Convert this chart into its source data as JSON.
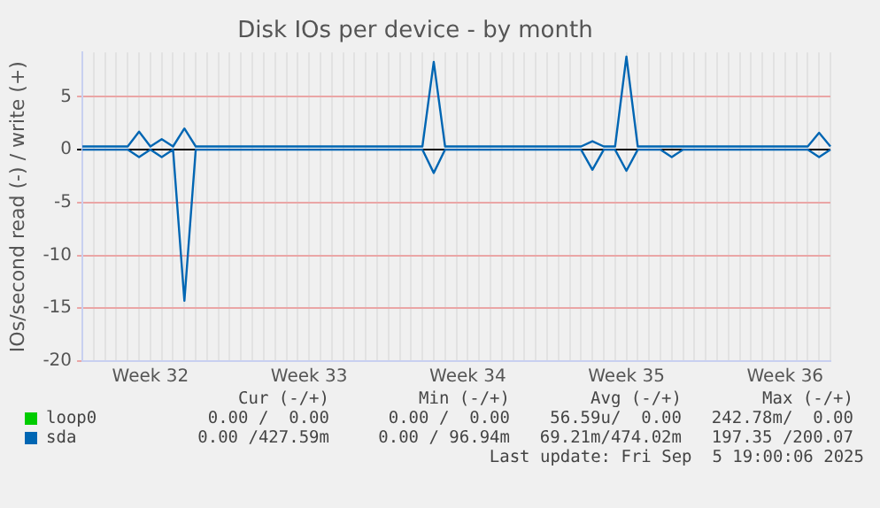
{
  "chart_data": {
    "type": "line",
    "title": "Disk IOs per device - by month",
    "ylabel": "IOs/second read (-) / write (+)",
    "categories": [
      null,
      null,
      null,
      null,
      null,
      null,
      "Week 32",
      null,
      null,
      null,
      null,
      null,
      null,
      null,
      null,
      null,
      null,
      null,
      null,
      null,
      "Week 33",
      null,
      null,
      null,
      null,
      null,
      null,
      null,
      null,
      null,
      null,
      null,
      null,
      null,
      "Week 34",
      null,
      null,
      null,
      null,
      null,
      null,
      null,
      null,
      null,
      null,
      null,
      null,
      null,
      "Week 35",
      null,
      null,
      null,
      null,
      null,
      null,
      null,
      null,
      null,
      null,
      null,
      null,
      null,
      "Week 36",
      null,
      null,
      null,
      null
    ],
    "ylim": [
      -20,
      9.2
    ],
    "yticks": [
      -20,
      -15,
      -10,
      -5,
      0,
      5
    ],
    "grid": true,
    "legend": "bottom",
    "marker": "none",
    "line_style": "solid",
    "series": [
      {
        "name": "loop0",
        "color": "#00cc00",
        "values": [
          null,
          null,
          null,
          null,
          null,
          null,
          null,
          null,
          null,
          null,
          null,
          null,
          null,
          null,
          null,
          null,
          null,
          null,
          null,
          null,
          null,
          null,
          null,
          null,
          null,
          null,
          null,
          null,
          null,
          null,
          null,
          null,
          null,
          null,
          null,
          null,
          null,
          null,
          null,
          null,
          null,
          null,
          null,
          null,
          null,
          null,
          null,
          null,
          null,
          null,
          null,
          null,
          null,
          null,
          null,
          null,
          null,
          null,
          null,
          null,
          null,
          null,
          null,
          null,
          null,
          null,
          null
        ]
      },
      {
        "name": "sda",
        "color": "#0066b3",
        "values": [
          0.3,
          0.3,
          0.3,
          0.3,
          0.3,
          1.7,
          0.3,
          1.0,
          0.3,
          2.0,
          0.3,
          0.3,
          0.3,
          0.3,
          0.3,
          0.3,
          0.3,
          0.3,
          0.3,
          0.3,
          0.3,
          0.3,
          0.3,
          0.3,
          0.3,
          0.3,
          0.3,
          0.3,
          0.3,
          0.3,
          0.3,
          8.3,
          0.3,
          0.3,
          0.3,
          0.3,
          0.3,
          0.3,
          0.3,
          0.3,
          0.3,
          0.3,
          0.3,
          0.3,
          0.3,
          0.8,
          0.3,
          0.3,
          8.8,
          0.3,
          0.3,
          0.3,
          0.3,
          0.3,
          0.3,
          0.3,
          0.3,
          0.3,
          0.3,
          0.3,
          0.3,
          0.3,
          0.3,
          0.3,
          0.3,
          1.6,
          0.3
        ]
      },
      {
        "color": "#0066b3",
        "values": [
          0,
          0,
          0,
          0,
          0,
          -0.7,
          0,
          -0.7,
          0,
          -14.3,
          0,
          0,
          0,
          0,
          0,
          0,
          0,
          0,
          0,
          0,
          0,
          0,
          0,
          0,
          0,
          0,
          0,
          0,
          0,
          0,
          0,
          -2.2,
          0,
          0,
          0,
          0,
          0,
          0,
          0,
          0,
          0,
          0,
          0,
          0,
          0,
          -1.9,
          0,
          0,
          -2.0,
          0,
          0,
          0,
          -0.7,
          0,
          0,
          0,
          0,
          0,
          0,
          0,
          0,
          0,
          0,
          0,
          0,
          -0.7,
          0
        ]
      }
    ],
    "annotations": [
      "Cur (-/+)",
      "Min (-/+)",
      "Avg (-/+)",
      "Max (-/+)",
      "0.00 /  0.00",
      "0.00 /  0.00",
      "56.59u/  0.00",
      "242.78m/  0.00",
      "0.00 /427.59m",
      "0.00 / 96.94m",
      "69.21m/474.02m",
      "197.35 /200.07",
      "Last update: Fri Sep  5 19:00:06 2025"
    ]
  }
}
